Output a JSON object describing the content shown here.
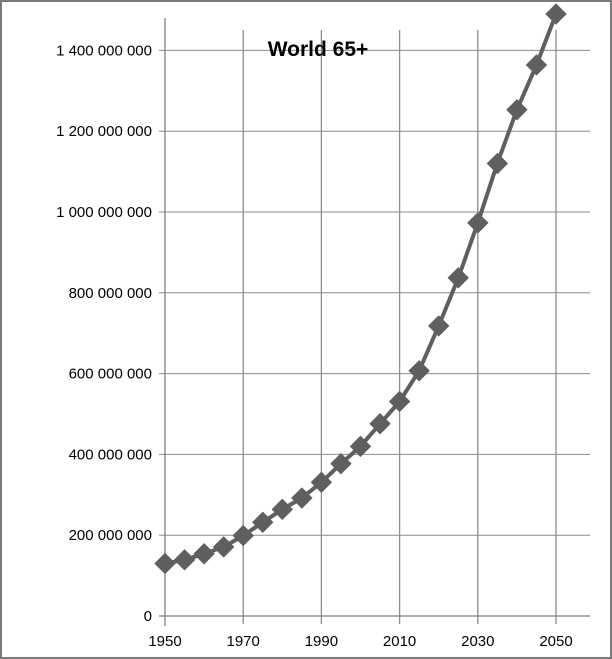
{
  "chart_data": {
    "type": "line",
    "title": "World 65+",
    "xlabel": "",
    "ylabel": "",
    "x": [
      1950,
      1955,
      1960,
      1965,
      1970,
      1975,
      1980,
      1985,
      1990,
      1995,
      2000,
      2005,
      2010,
      2015,
      2020,
      2025,
      2030,
      2035,
      2040,
      2045,
      2050
    ],
    "series": [
      {
        "values": [
          130000000,
          139000000,
          154000000,
          171000000,
          199000000,
          232000000,
          264000000,
          292000000,
          331000000,
          377000000,
          420000000,
          476000000,
          531000000,
          607000000,
          718000000,
          837000000,
          973000000,
          1120000000,
          1253000000,
          1364000000,
          1490000000
        ]
      }
    ],
    "xlim": [
      1950,
      2050
    ],
    "ylim": [
      0,
      1500000000
    ],
    "x_ticks": [
      1950,
      1970,
      1990,
      2010,
      2030,
      2050
    ],
    "y_ticks": [
      0,
      200000000,
      400000000,
      600000000,
      800000000,
      1000000000,
      1200000000,
      1400000000
    ],
    "x_tick_labels": [
      "1950",
      "1970",
      "1990",
      "2010",
      "2030",
      "2050"
    ],
    "y_tick_labels": [
      "0",
      "200 000 000",
      "400 000 000",
      "600 000 000",
      "800 000 000",
      "1 000 000 000",
      "1 200 000 000",
      "1 400 000 000"
    ],
    "grid": "vertical and horizontal",
    "colors": {
      "line": "#5f5f5f",
      "marker": "#5f5f5f",
      "grid": "#8c8c8c",
      "frame": "#7a7a7a"
    }
  }
}
